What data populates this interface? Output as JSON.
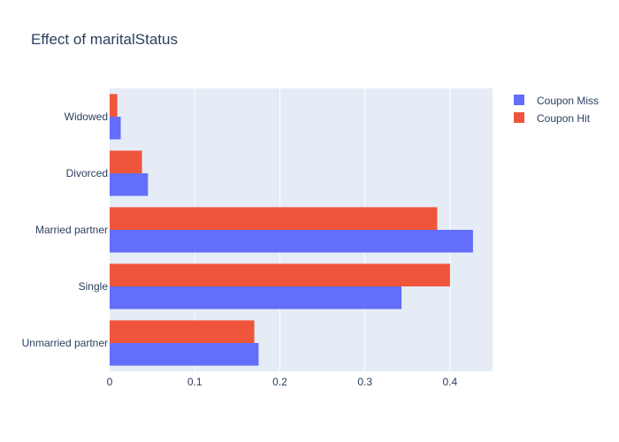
{
  "chart_data": {
    "type": "bar",
    "orientation": "horizontal",
    "title": "Effect of maritalStatus",
    "xlabel": "",
    "ylabel": "",
    "categories": [
      "Unmarried partner",
      "Single",
      "Married partner",
      "Divorced",
      "Widowed"
    ],
    "series": [
      {
        "name": "Coupon Miss",
        "color": "#636efa",
        "values": [
          0.175,
          0.343,
          0.427,
          0.045,
          0.013
        ]
      },
      {
        "name": "Coupon Hit",
        "color": "#ef553b",
        "values": [
          0.17,
          0.4,
          0.385,
          0.038,
          0.009
        ]
      }
    ],
    "xlim": [
      0,
      0.45
    ],
    "xticks": [
      0,
      0.1,
      0.2,
      0.3,
      0.4
    ],
    "xtick_labels": [
      "0",
      "0.1",
      "0.2",
      "0.3",
      "0.4"
    ],
    "grid": true,
    "legend_position": "top-right",
    "plot_background": "#e5ecf6"
  }
}
